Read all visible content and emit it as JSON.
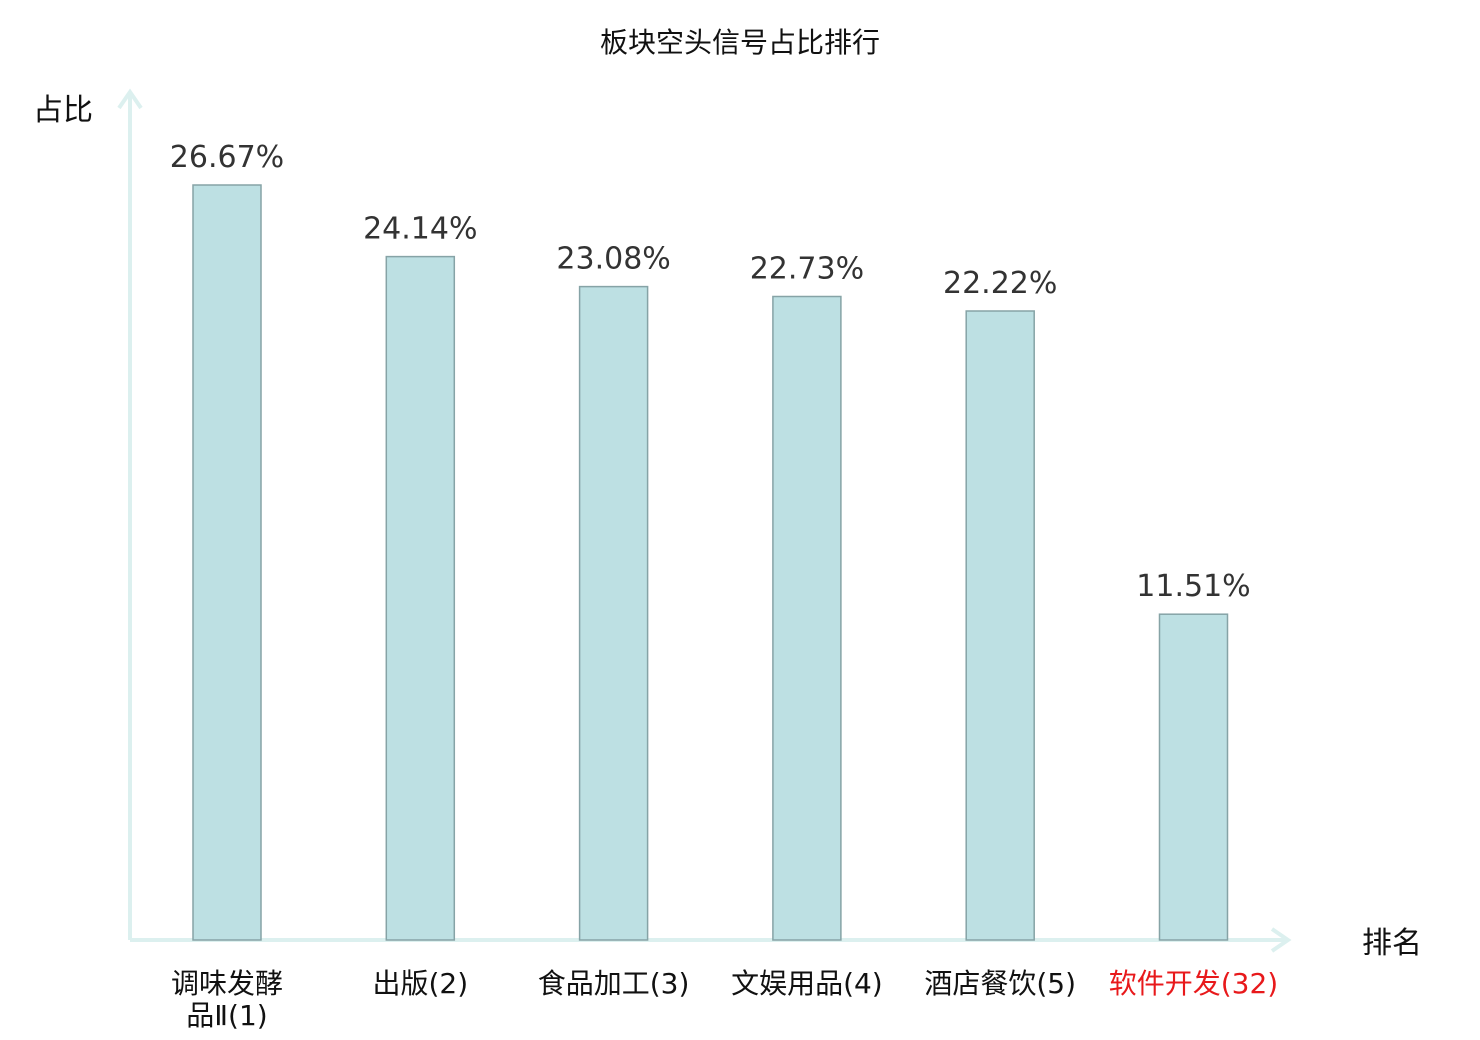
{
  "chart_data": {
    "type": "bar",
    "title": "板块空头信号占比排行",
    "ylabel": "占比",
    "xlabel": "排名",
    "categories": [
      [
        "调味发酵",
        "品Ⅱ(1)"
      ],
      [
        "出版(2)"
      ],
      [
        "食品加工(3)"
      ],
      [
        "文娱用品(4)"
      ],
      [
        "酒店餐饮(5)"
      ],
      [
        "软件开发(32)"
      ]
    ],
    "highlight_index": 5,
    "values": [
      26.67,
      24.14,
      23.08,
      22.73,
      22.22,
      11.51
    ],
    "value_labels": [
      "26.67%",
      "24.14%",
      "23.08%",
      "22.73%",
      "22.22%",
      "11.51%"
    ],
    "ylim": [
      0,
      26.67
    ],
    "grid": false,
    "colors": {
      "bar_fill": "#bde0e3",
      "bar_stroke": "#86a3a6",
      "axis": "#dcf0ef",
      "highlight_text": "#e8191b"
    }
  }
}
